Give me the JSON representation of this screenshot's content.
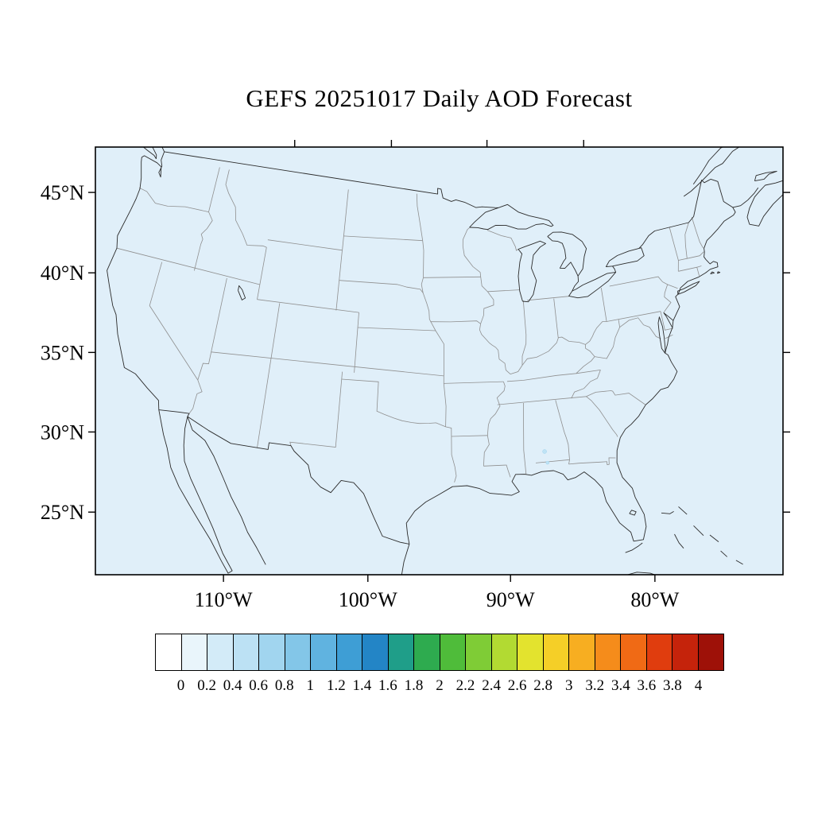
{
  "title": "GEFS 20251017 Daily AOD Forecast",
  "map": {
    "background_color": "#e0eff9",
    "y_axis": {
      "tick_labels": [
        "45°N",
        "40°N",
        "35°N",
        "30°N",
        "25°N"
      ],
      "tick_lats": [
        45,
        40,
        35,
        30,
        25
      ]
    },
    "x_axis": {
      "tick_labels": [
        "110°W",
        "100°W",
        "90°W",
        "80°W"
      ],
      "tick_lons": [
        -110,
        -100,
        -90,
        -80
      ]
    }
  },
  "colorbar": {
    "tick_labels": [
      "0",
      "0.2",
      "0.4",
      "0.6",
      "0.8",
      "1",
      "1.2",
      "1.4",
      "1.6",
      "1.8",
      "2",
      "2.2",
      "2.4",
      "2.6",
      "2.8",
      "3",
      "3.2",
      "3.4",
      "3.6",
      "3.8",
      "4"
    ],
    "levels": [
      0,
      0.2,
      0.4,
      0.6,
      0.8,
      1,
      1.2,
      1.4,
      1.6,
      1.8,
      2,
      2.2,
      2.4,
      2.6,
      2.8,
      3,
      3.2,
      3.4,
      3.6,
      3.8,
      4
    ],
    "colors": [
      "#ffffff",
      "#e9f5fb",
      "#d3ebf8",
      "#bce1f4",
      "#a1d5ef",
      "#83c6e8",
      "#60b3e0",
      "#3e9ed5",
      "#2385c6",
      "#1f9e89",
      "#2eab4f",
      "#4fbc3a",
      "#7fcc36",
      "#b2da32",
      "#e3e32e",
      "#f5cf27",
      "#f7ae21",
      "#f58c1b",
      "#f06a15",
      "#e03d0e",
      "#c5230b",
      "#9e1108"
    ]
  },
  "chart_data": {
    "type": "heatmap",
    "title": "GEFS 20251017 Daily AOD Forecast",
    "variable": "AOD",
    "region": "Continental United States",
    "x_axis_ticks": [
      "110°W",
      "100°W",
      "90°W",
      "80°W"
    ],
    "y_axis_ticks": [
      "45°N",
      "40°N",
      "35°N",
      "30°N",
      "25°N"
    ],
    "colorbar_levels": [
      0,
      0.2,
      0.4,
      0.6,
      0.8,
      1,
      1.2,
      1.4,
      1.6,
      1.8,
      2,
      2.2,
      2.4,
      2.6,
      2.8,
      3,
      3.2,
      3.4,
      3.6,
      3.8,
      4
    ],
    "field_summary": "AOD near 0 (below 0.2) across the entire visible map domain"
  }
}
